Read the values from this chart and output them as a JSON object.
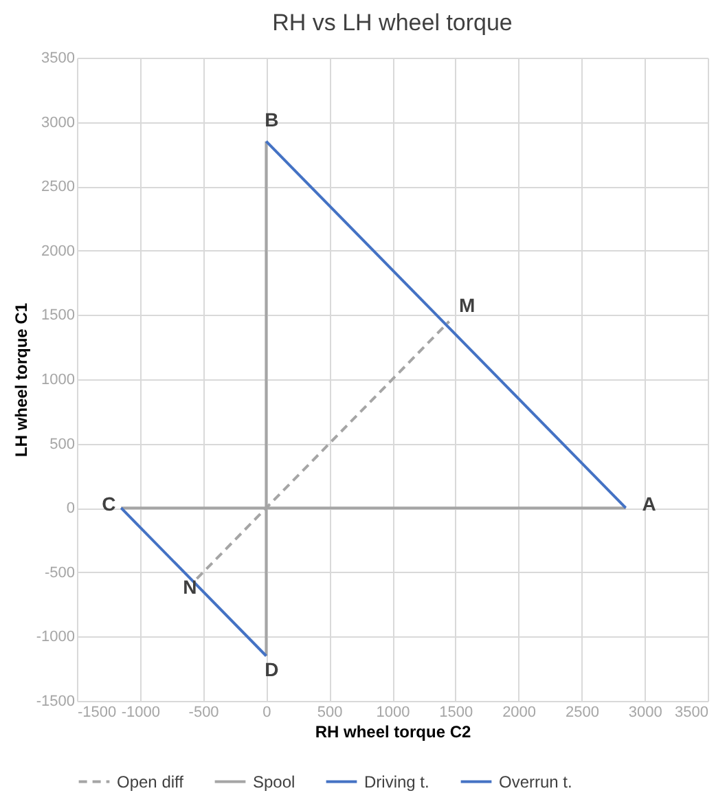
{
  "chart_data": {
    "type": "line",
    "title": "RH vs LH wheel torque",
    "xlabel": "RH wheel torque C2",
    "ylabel": "LH wheel torque C1",
    "xlim": [
      -1500,
      3500
    ],
    "xticks": [
      -1500,
      -1000,
      -500,
      0,
      500,
      1000,
      1500,
      2000,
      2500,
      3000,
      3500
    ],
    "ylim": [
      -1500,
      3500
    ],
    "yticks": [
      -1500,
      -1000,
      -500,
      0,
      500,
      1000,
      1500,
      2000,
      2500,
      3000,
      3500
    ],
    "grid": true,
    "legend": "bottom",
    "series": [
      {
        "name": "Open diff",
        "color": "#a5a5a5",
        "line_style": "dashed",
        "x": [
          -550,
          1450
        ],
        "values": [
          -550,
          1450
        ]
      },
      {
        "name": "Spool",
        "color": "#a5a5a5",
        "line_style": "solid",
        "x": [
          -1150,
          2850
        ],
        "values": [
          0,
          0
        ]
      },
      {
        "color": "#a5a5a5",
        "line_style": "solid",
        "x": [
          0,
          0
        ],
        "values": [
          -1150,
          2850
        ]
      },
      {
        "name": "Driving t.",
        "color": "#4472c4",
        "line_style": "solid",
        "x": [
          0,
          2850
        ],
        "values": [
          2850,
          0
        ]
      },
      {
        "name": "Overrun t.",
        "color": "#4472c4",
        "line_style": "solid",
        "x": [
          -1150,
          0
        ],
        "values": [
          0,
          -1150
        ]
      }
    ],
    "annotations": [
      {
        "text": "B",
        "x": 0,
        "y": 2850
      },
      {
        "text": "M",
        "x": 1450,
        "y": 1450
      },
      {
        "text": "C",
        "x": -1150,
        "y": 0
      },
      {
        "text": "A",
        "x": 2850,
        "y": 0
      },
      {
        "text": "N",
        "x": -550,
        "y": -550
      },
      {
        "text": "D",
        "x": 0,
        "y": -1150
      }
    ]
  }
}
